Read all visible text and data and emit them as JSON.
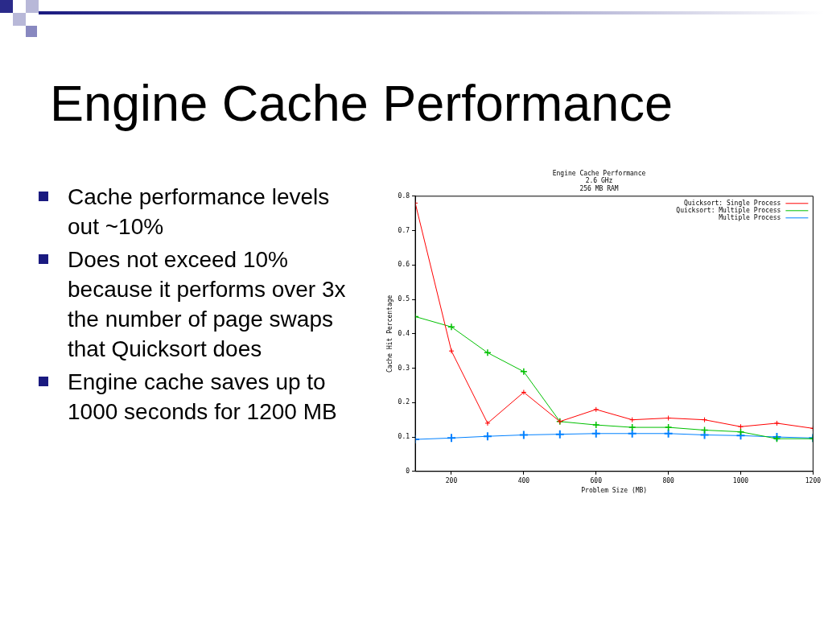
{
  "chart_data": {
    "type": "line",
    "title": "Engine Cache Performance",
    "subtitle": "2.6 GHz\n256 MB RAM",
    "xlabel": "Problem Size (MB)",
    "ylabel": "Cache Hit Percentage",
    "x": [
      100,
      200,
      300,
      400,
      500,
      600,
      700,
      800,
      900,
      1000,
      1100,
      1200
    ],
    "series": [
      {
        "name": "Quicksort: Single Process",
        "color": "#ff0000",
        "marker": "cross",
        "values": [
          0.78,
          0.35,
          0.14,
          0.23,
          0.145,
          0.18,
          0.15,
          0.155,
          0.15,
          0.13,
          0.14,
          0.125
        ]
      },
      {
        "name": "Quicksort: Multiple Process",
        "color": "#00c000",
        "marker": "cross",
        "values": [
          0.45,
          0.42,
          0.345,
          0.29,
          0.145,
          0.135,
          0.128,
          0.128,
          0.12,
          0.115,
          0.095,
          0.095
        ]
      },
      {
        "name": "Multiple Process",
        "color": "#0080ff",
        "marker": "cross",
        "values": [
          0.093,
          0.097,
          0.102,
          0.106,
          0.108,
          0.11,
          0.11,
          0.11,
          0.106,
          0.104,
          0.1,
          0.097
        ]
      }
    ],
    "xlim": [
      100,
      1200
    ],
    "xticks": [
      200,
      400,
      600,
      800,
      {
        "value": 1000,
        "label": "1000"
      },
      {
        "value": 1200,
        "label": "1200"
      }
    ],
    "ylim": [
      0,
      0.8
    ],
    "yticks": [
      0,
      0.1,
      0.2,
      0.3,
      0.4,
      0.5,
      0.6,
      0.7,
      0.8
    ],
    "legend": "top right",
    "annotations": [
      "Engine Cache Performance",
      "Cache performance levels out ~10%",
      "Does not exceed 10% because it performs over 3x the number of page swaps that Quicksort does",
      "Engine cache saves up to 1000 seconds for 1200 MB"
    ]
  }
}
